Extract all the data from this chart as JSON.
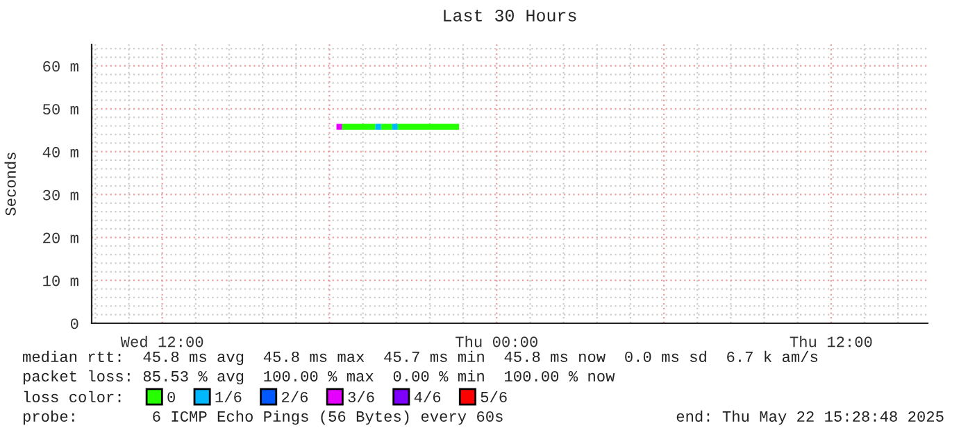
{
  "chart_data": {
    "type": "line",
    "title": "Last 30 Hours",
    "ylabel": "Seconds",
    "xlim": [
      "2025-05-21T09:28",
      "2025-05-22T15:28"
    ],
    "xticks": [
      {
        "value": "2025-05-21T12:00",
        "label": "Wed 12:00"
      },
      {
        "value": "2025-05-21T18:00",
        "label": null
      },
      {
        "value": "2025-05-22T00:00",
        "label": "Thu 00:00"
      },
      {
        "value": "2025-05-22T06:00",
        "label": null
      },
      {
        "value": "2025-05-22T12:00",
        "label": "Thu 12:00"
      }
    ],
    "ylim": [
      0,
      65
    ],
    "yticks": [
      {
        "value": 0,
        "label": "0"
      },
      {
        "value": 10,
        "label": "10 m"
      },
      {
        "value": 20,
        "label": "20 m"
      },
      {
        "value": 30,
        "label": "30 m"
      },
      {
        "value": 40,
        "label": "40 m"
      },
      {
        "value": 50,
        "label": "50 m"
      },
      {
        "value": 60,
        "label": "60 m"
      }
    ],
    "grid": true,
    "legend": "bottom",
    "legend_title": "loss color:",
    "series": [
      {
        "name": "0",
        "color": "#26ff00",
        "x": [
          "2025-05-21T18:27",
          "2025-05-21T19:39",
          "2025-05-21T19:42",
          "2025-05-21T19:51",
          "2025-05-21T20:15",
          "2025-05-21T20:18",
          "2025-05-21T20:27",
          "2025-05-21T22:39"
        ],
        "values": [
          45.8,
          45.8,
          null,
          45.8,
          45.8,
          null,
          45.8,
          45.8
        ]
      },
      {
        "name": "1/6",
        "color": "#00b8ff",
        "x": [
          "2025-05-21T19:39",
          "2025-05-21T19:51",
          "2025-05-21T19:54",
          "2025-05-21T20:15",
          "2025-05-21T20:27"
        ],
        "values": [
          45.8,
          45.8,
          null,
          45.8,
          45.8
        ]
      },
      {
        "name": "2/6",
        "color": "#0059ff"
      },
      {
        "name": "3/6",
        "color": "#e600ff",
        "x": [
          "2025-05-21T18:15",
          "2025-05-21T18:27"
        ],
        "values": [
          45.8,
          45.8
        ]
      },
      {
        "name": "4/6",
        "color": "#7e00ff"
      },
      {
        "name": "5/6",
        "color": "#ff0000"
      }
    ],
    "annotations": [
      "median rtt:  45.8 ms avg  45.8 ms max  45.7 ms min  45.8 ms now  0.0 ms sd  6.7 k am/s",
      "packet loss: 85.53 % avg  100.00 % max  0.00 % min  100.00 % now",
      "probe:        6 ICMP Echo Pings (56 Bytes) every 60s",
      "end: Thu May 22 15:28:48 2025"
    ]
  }
}
